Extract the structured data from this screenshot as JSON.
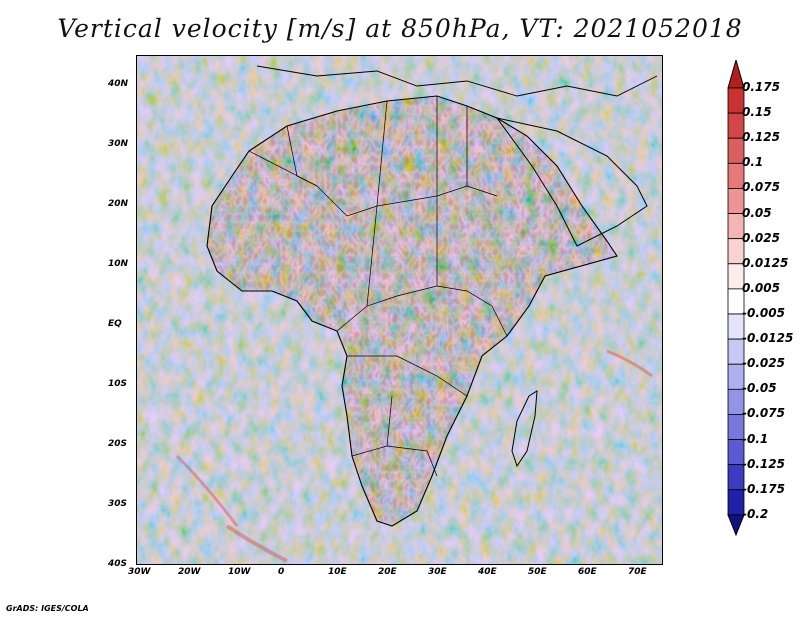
{
  "title": "Vertical velocity [m/s] at 850hPa, VT: 2021052018",
  "credit": "GrADS: IGES/COLA",
  "map": {
    "lon_range": [
      -30,
      75
    ],
    "lat_range": [
      -40,
      45
    ],
    "x_ticks": [
      "30W",
      "20W",
      "10W",
      "0",
      "10E",
      "20E",
      "30E",
      "40E",
      "50E",
      "60E",
      "70E"
    ],
    "y_ticks": [
      "40N",
      "30N",
      "20N",
      "10N",
      "EQ",
      "10S",
      "20S",
      "30S",
      "40S"
    ]
  },
  "legend": {
    "levels": [
      "0.175",
      "0.15",
      "0.125",
      "0.1",
      "0.075",
      "0.05",
      "0.025",
      "0.0125",
      "0.005",
      "-0.005",
      "-0.0125",
      "-0.025",
      "-0.05",
      "-0.075",
      "-0.1",
      "-0.125",
      "-0.175",
      "-0.2"
    ],
    "colors": [
      "#b41e1e",
      "#c83232",
      "#d24646",
      "#dc5f5f",
      "#e67878",
      "#ee9494",
      "#f5b4b4",
      "#fad2d2",
      "#fdecec",
      "#ffffff",
      "#e3e3fa",
      "#c8c8f5",
      "#aeaef0",
      "#9494e6",
      "#7878dc",
      "#5a5ad2",
      "#3c3cc3",
      "#2020aa",
      "#12127f"
    ]
  }
}
